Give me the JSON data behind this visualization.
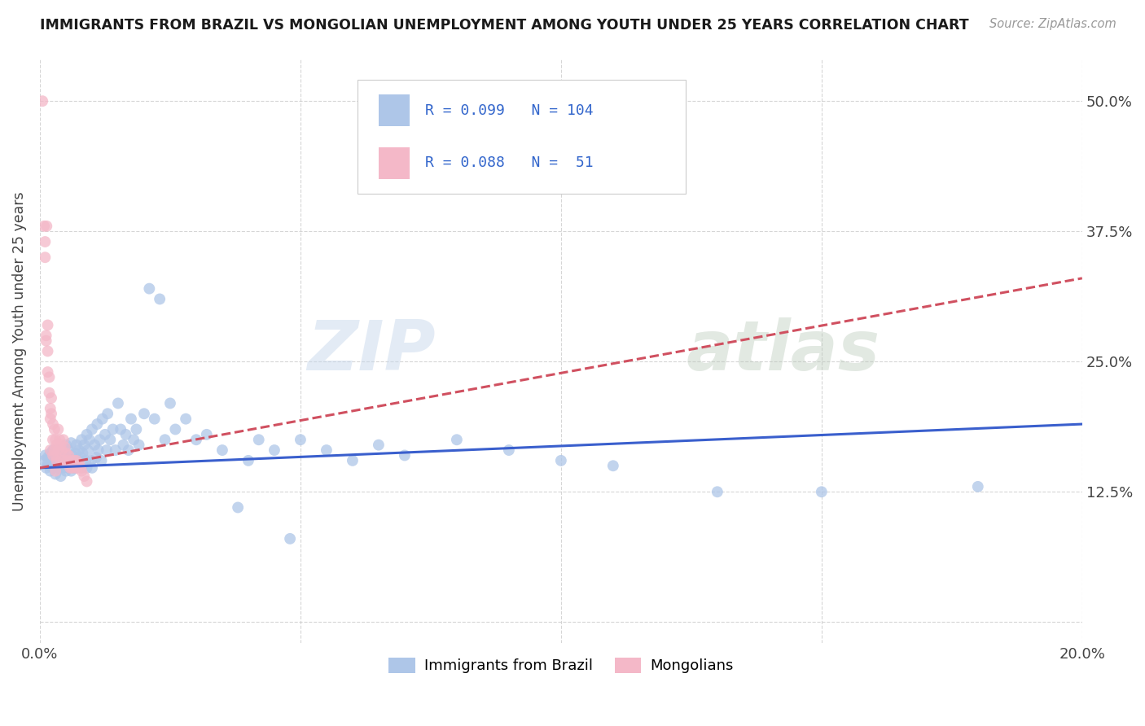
{
  "title": "IMMIGRANTS FROM BRAZIL VS MONGOLIAN UNEMPLOYMENT AMONG YOUTH UNDER 25 YEARS CORRELATION CHART",
  "source": "Source: ZipAtlas.com",
  "ylabel": "Unemployment Among Youth under 25 years",
  "xlim": [
    0.0,
    0.2
  ],
  "ylim": [
    -0.02,
    0.54
  ],
  "yticks": [
    0.0,
    0.125,
    0.25,
    0.375,
    0.5
  ],
  "ytick_labels": [
    "",
    "12.5%",
    "25.0%",
    "37.5%",
    "50.0%"
  ],
  "xticks": [
    0.0,
    0.05,
    0.1,
    0.15,
    0.2
  ],
  "xtick_labels": [
    "0.0%",
    "",
    "",
    "",
    "20.0%"
  ],
  "legend_label1": "Immigrants from Brazil",
  "legend_label2": "Mongolians",
  "color_blue": "#aec6e8",
  "color_pink": "#f4b8c8",
  "color_blue_line": "#3a5fcd",
  "color_pink_line": "#d05060",
  "color_legend_text": "#3366cc",
  "watermark_zip": "ZIP",
  "watermark_atlas": "atlas",
  "brazil_x": [
    0.0008,
    0.001,
    0.0012,
    0.0015,
    0.0015,
    0.0018,
    0.002,
    0.002,
    0.0022,
    0.0025,
    0.0025,
    0.0028,
    0.003,
    0.003,
    0.003,
    0.0032,
    0.0035,
    0.0035,
    0.0038,
    0.004,
    0.004,
    0.0042,
    0.0045,
    0.0045,
    0.0048,
    0.005,
    0.005,
    0.0052,
    0.0055,
    0.0055,
    0.0058,
    0.006,
    0.006,
    0.0062,
    0.0065,
    0.0065,
    0.0068,
    0.007,
    0.007,
    0.0072,
    0.0075,
    0.0078,
    0.008,
    0.008,
    0.0082,
    0.0085,
    0.0088,
    0.009,
    0.009,
    0.0092,
    0.0095,
    0.0098,
    0.01,
    0.01,
    0.0105,
    0.0108,
    0.011,
    0.0112,
    0.0115,
    0.0118,
    0.012,
    0.0125,
    0.0128,
    0.013,
    0.0135,
    0.014,
    0.0145,
    0.015,
    0.0155,
    0.016,
    0.0165,
    0.017,
    0.0175,
    0.018,
    0.0185,
    0.019,
    0.02,
    0.021,
    0.022,
    0.023,
    0.024,
    0.025,
    0.026,
    0.028,
    0.03,
    0.032,
    0.035,
    0.038,
    0.04,
    0.042,
    0.045,
    0.048,
    0.05,
    0.055,
    0.06,
    0.065,
    0.07,
    0.08,
    0.09,
    0.1,
    0.11,
    0.13,
    0.15,
    0.18
  ],
  "brazil_y": [
    0.155,
    0.16,
    0.148,
    0.152,
    0.158,
    0.15,
    0.145,
    0.162,
    0.155,
    0.148,
    0.165,
    0.158,
    0.15,
    0.16,
    0.142,
    0.155,
    0.148,
    0.165,
    0.152,
    0.158,
    0.14,
    0.155,
    0.162,
    0.148,
    0.155,
    0.17,
    0.145,
    0.158,
    0.165,
    0.148,
    0.155,
    0.172,
    0.145,
    0.16,
    0.155,
    0.148,
    0.162,
    0.17,
    0.148,
    0.155,
    0.165,
    0.158,
    0.175,
    0.148,
    0.162,
    0.17,
    0.155,
    0.18,
    0.148,
    0.165,
    0.175,
    0.155,
    0.185,
    0.148,
    0.17,
    0.158,
    0.19,
    0.165,
    0.175,
    0.155,
    0.195,
    0.18,
    0.165,
    0.2,
    0.175,
    0.185,
    0.165,
    0.21,
    0.185,
    0.17,
    0.18,
    0.165,
    0.195,
    0.175,
    0.185,
    0.17,
    0.2,
    0.32,
    0.195,
    0.31,
    0.175,
    0.21,
    0.185,
    0.195,
    0.175,
    0.18,
    0.165,
    0.11,
    0.155,
    0.175,
    0.165,
    0.08,
    0.175,
    0.165,
    0.155,
    0.17,
    0.16,
    0.175,
    0.165,
    0.155,
    0.15,
    0.125,
    0.125,
    0.13
  ],
  "mongolia_x": [
    0.0005,
    0.0008,
    0.001,
    0.001,
    0.0012,
    0.0012,
    0.0013,
    0.0015,
    0.0015,
    0.0015,
    0.0018,
    0.0018,
    0.002,
    0.002,
    0.002,
    0.0022,
    0.0022,
    0.0025,
    0.0025,
    0.0025,
    0.0028,
    0.0028,
    0.003,
    0.003,
    0.003,
    0.0032,
    0.0032,
    0.0035,
    0.0035,
    0.0038,
    0.004,
    0.004,
    0.0042,
    0.0045,
    0.0045,
    0.0048,
    0.005,
    0.0052,
    0.0055,
    0.0058,
    0.006,
    0.0062,
    0.0065,
    0.0068,
    0.007,
    0.0072,
    0.0075,
    0.0078,
    0.008,
    0.0085,
    0.009
  ],
  "mongolia_y": [
    0.5,
    0.38,
    0.365,
    0.35,
    0.275,
    0.27,
    0.38,
    0.24,
    0.26,
    0.285,
    0.22,
    0.235,
    0.205,
    0.195,
    0.165,
    0.2,
    0.215,
    0.175,
    0.19,
    0.16,
    0.185,
    0.165,
    0.175,
    0.16,
    0.145,
    0.17,
    0.155,
    0.185,
    0.165,
    0.175,
    0.17,
    0.155,
    0.165,
    0.175,
    0.155,
    0.168,
    0.162,
    0.155,
    0.16,
    0.148,
    0.155,
    0.148,
    0.155,
    0.148,
    0.155,
    0.148,
    0.152,
    0.148,
    0.145,
    0.14,
    0.135
  ]
}
